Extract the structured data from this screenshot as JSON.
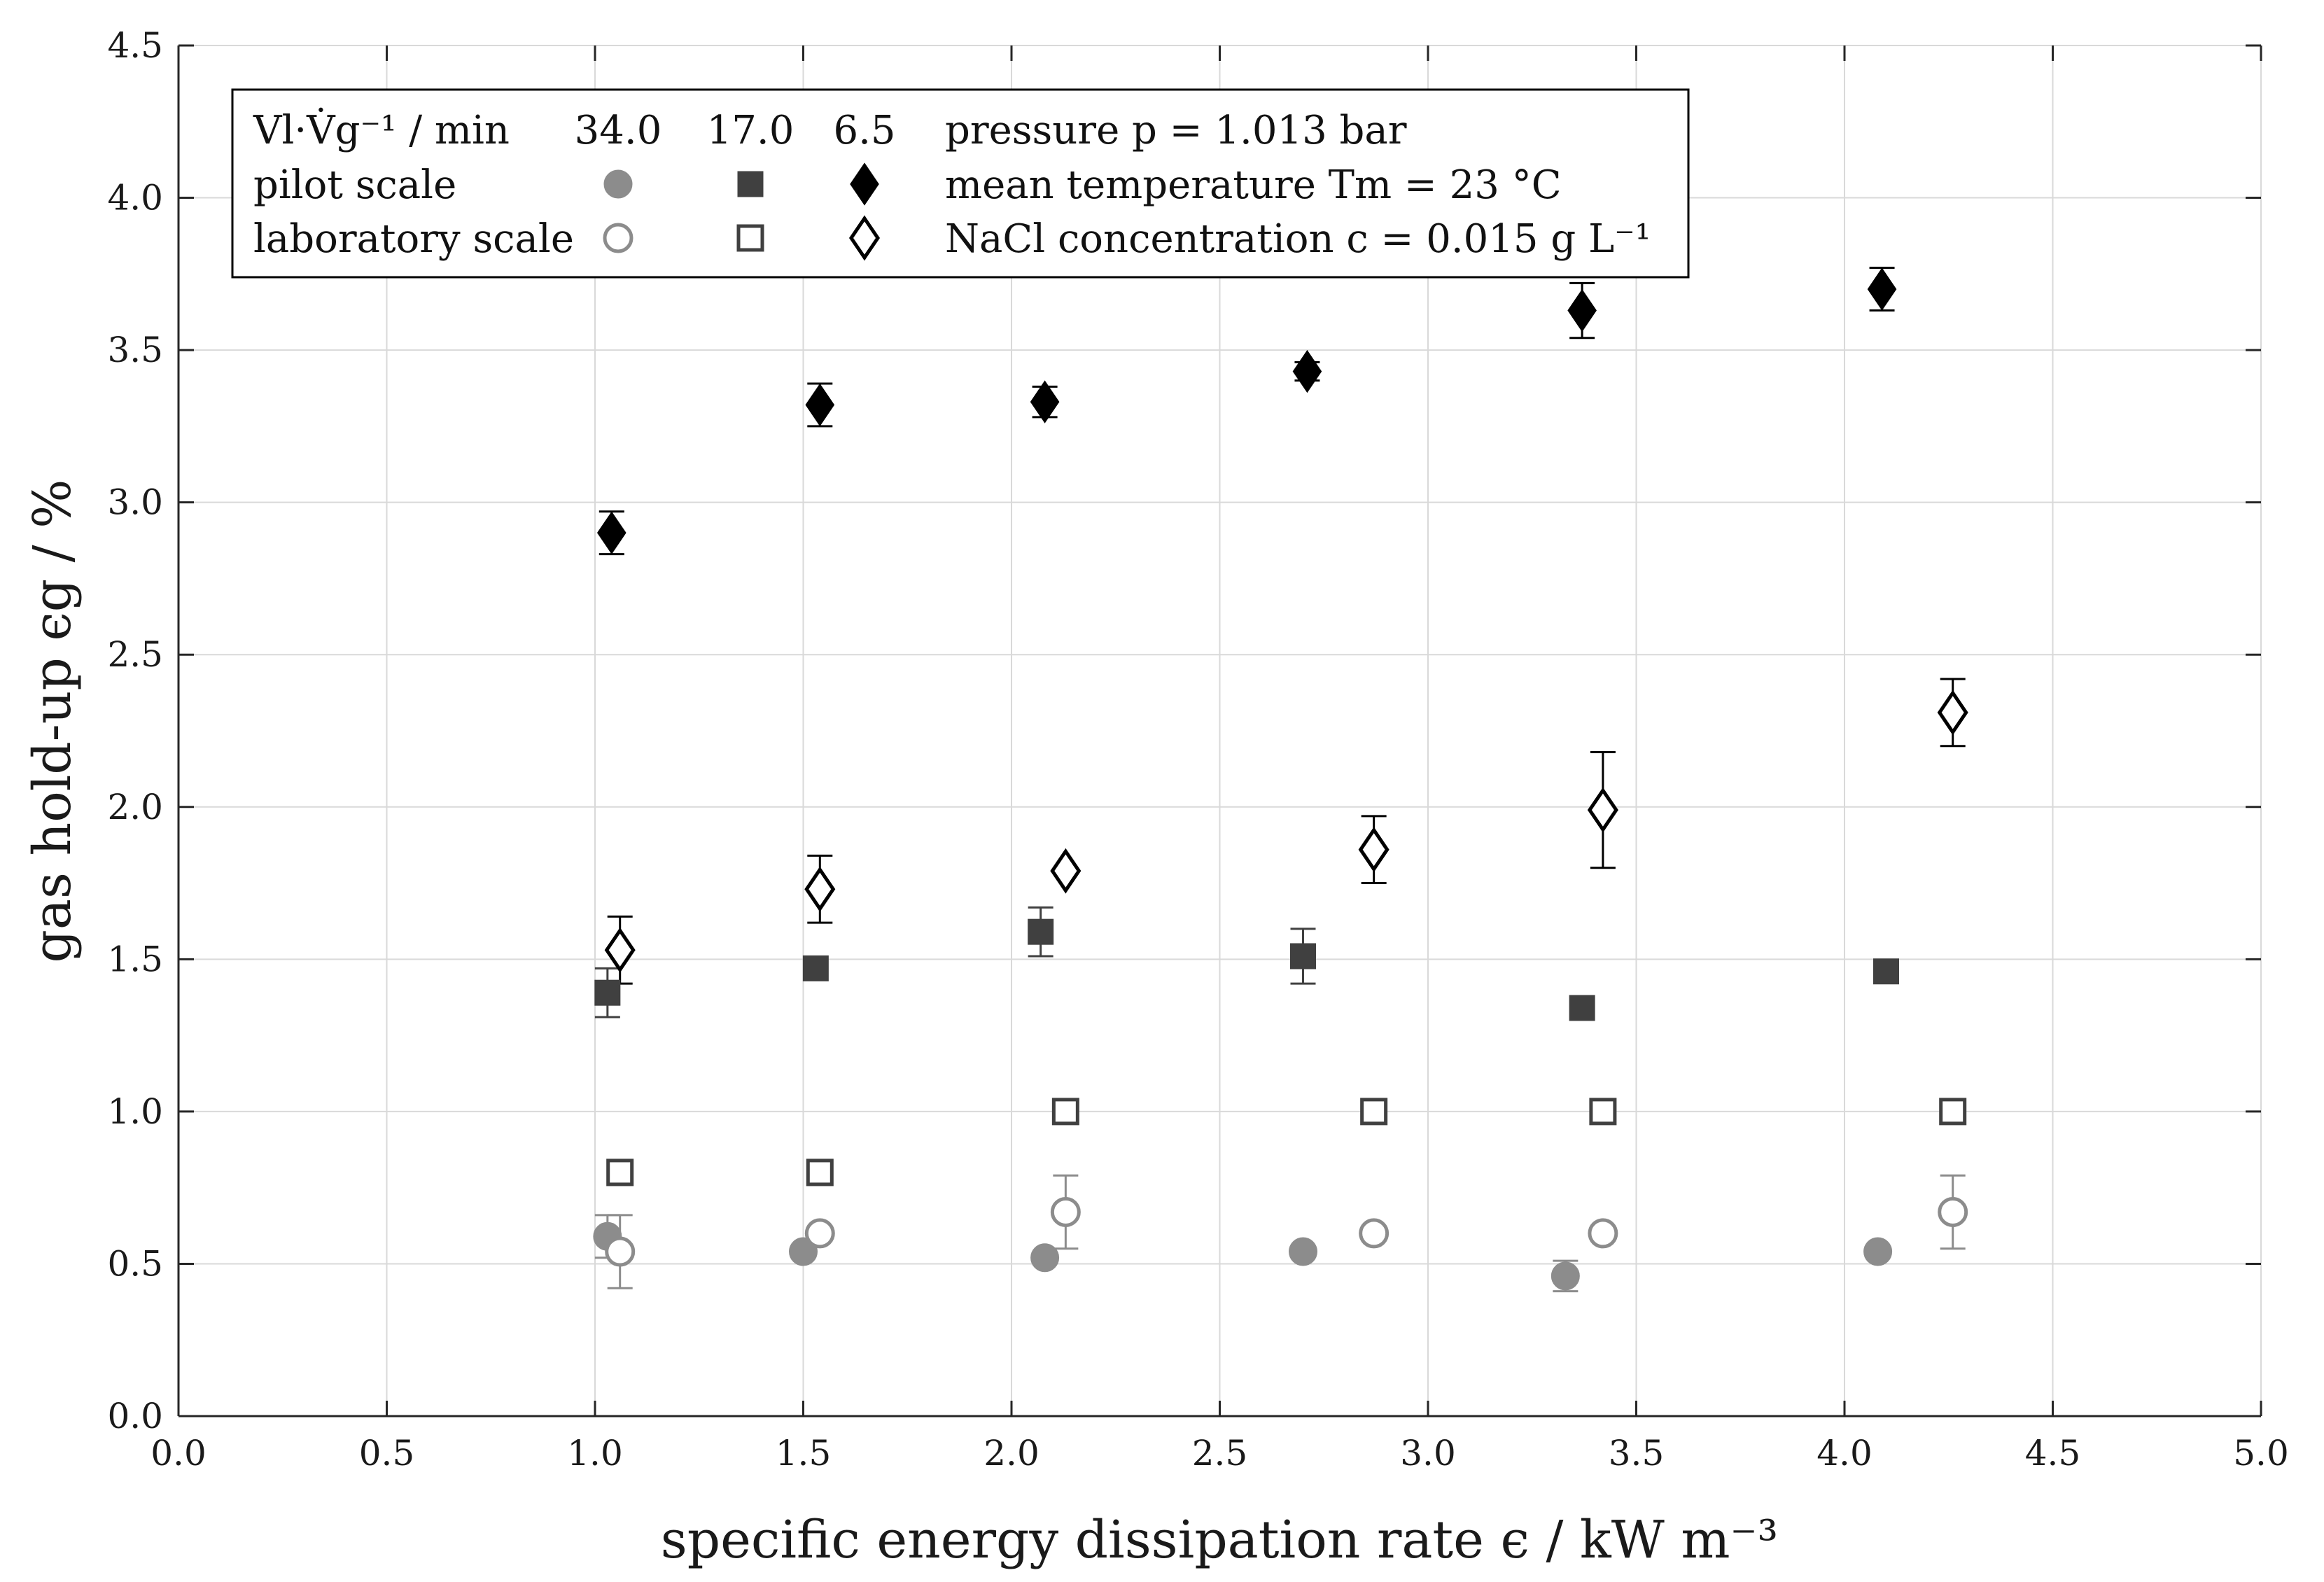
{
  "chart_data": {
    "type": "scatter",
    "xlabel": "specific energy dissipation rate ϵ / kW m⁻³",
    "ylabel": "gas hold-up ϵg / %",
    "xlim": [
      0,
      5.0
    ],
    "ylim": [
      0,
      4.5
    ],
    "grid": true,
    "x_ticks": [
      "0.0",
      "0.5",
      "1.0",
      "1.5",
      "2.0",
      "2.5",
      "3.0",
      "3.5",
      "4.0",
      "4.5",
      "5.0"
    ],
    "y_ticks": [
      "0.0",
      "0.5",
      "1.0",
      "1.5",
      "2.0",
      "2.5",
      "3.0",
      "3.5",
      "4.0",
      "4.5"
    ],
    "legend": {
      "position": "top-left",
      "header_label": "Vl·V̇g⁻¹ / min",
      "ratio_values": [
        "34.0",
        "17.0",
        "6.5"
      ],
      "rows": [
        "pilot scale",
        "laboratory scale"
      ],
      "conditions": [
        "pressure p = 1.013 bar",
        "mean temperature Tm = 23 °C",
        "NaCl concentration c = 0.015 g L⁻¹"
      ]
    },
    "colors": {
      "light": "#8c8c8c",
      "dark": "#404040",
      "black": "#000000"
    },
    "series": [
      {
        "name": "pilot scale 34.0",
        "marker": "circle-filled",
        "color": "#8c8c8c",
        "points": [
          {
            "x": 1.03,
            "y": 0.59,
            "err": 0.07
          },
          {
            "x": 1.5,
            "y": 0.54,
            "err": 0
          },
          {
            "x": 2.08,
            "y": 0.52,
            "err": 0
          },
          {
            "x": 2.7,
            "y": 0.54,
            "err": 0
          },
          {
            "x": 3.33,
            "y": 0.46,
            "err": 0.05
          },
          {
            "x": 4.08,
            "y": 0.54,
            "err": 0
          }
        ]
      },
      {
        "name": "pilot scale 17.0",
        "marker": "square-filled",
        "color": "#404040",
        "points": [
          {
            "x": 1.03,
            "y": 1.39,
            "err": 0.08
          },
          {
            "x": 1.53,
            "y": 1.47,
            "err": 0
          },
          {
            "x": 2.07,
            "y": 1.59,
            "err": 0.08
          },
          {
            "x": 2.7,
            "y": 1.51,
            "err": 0.09
          },
          {
            "x": 3.37,
            "y": 1.34,
            "err": 0
          },
          {
            "x": 4.1,
            "y": 1.46,
            "err": 0.03
          }
        ]
      },
      {
        "name": "pilot scale 6.5",
        "marker": "diamond-filled",
        "color": "#000000",
        "points": [
          {
            "x": 1.04,
            "y": 2.9,
            "err": 0.07
          },
          {
            "x": 1.54,
            "y": 3.32,
            "err": 0.07
          },
          {
            "x": 2.08,
            "y": 3.33,
            "err": 0.05
          },
          {
            "x": 2.71,
            "y": 3.43,
            "err": 0.03
          },
          {
            "x": 3.37,
            "y": 3.63,
            "err": 0.09
          },
          {
            "x": 4.09,
            "y": 3.7,
            "err": 0.07
          }
        ]
      },
      {
        "name": "laboratory scale 34.0",
        "marker": "circle-open",
        "color": "#8c8c8c",
        "points": [
          {
            "x": 1.06,
            "y": 0.54,
            "err": 0.12
          },
          {
            "x": 1.54,
            "y": 0.6,
            "err": 0
          },
          {
            "x": 2.13,
            "y": 0.67,
            "err": 0.12
          },
          {
            "x": 2.87,
            "y": 0.6,
            "err": 0
          },
          {
            "x": 3.42,
            "y": 0.6,
            "err": 0
          },
          {
            "x": 4.26,
            "y": 0.67,
            "err": 0.12
          }
        ]
      },
      {
        "name": "laboratory scale 17.0",
        "marker": "square-open",
        "color": "#404040",
        "points": [
          {
            "x": 1.06,
            "y": 0.8,
            "err": 0
          },
          {
            "x": 1.54,
            "y": 0.8,
            "err": 0
          },
          {
            "x": 2.13,
            "y": 1.0,
            "err": 0
          },
          {
            "x": 2.87,
            "y": 1.0,
            "err": 0
          },
          {
            "x": 3.42,
            "y": 1.0,
            "err": 0
          },
          {
            "x": 4.26,
            "y": 1.0,
            "err": 0
          }
        ]
      },
      {
        "name": "laboratory scale 6.5",
        "marker": "diamond-open",
        "color": "#000000",
        "points": [
          {
            "x": 1.06,
            "y": 1.53,
            "err": 0.11
          },
          {
            "x": 1.54,
            "y": 1.73,
            "err": 0.11
          },
          {
            "x": 2.13,
            "y": 1.79,
            "err": 0
          },
          {
            "x": 2.87,
            "y": 1.86,
            "err": 0.11
          },
          {
            "x": 3.42,
            "y": 1.99,
            "err": 0.19
          },
          {
            "x": 4.26,
            "y": 2.31,
            "err": 0.11
          }
        ]
      }
    ]
  }
}
